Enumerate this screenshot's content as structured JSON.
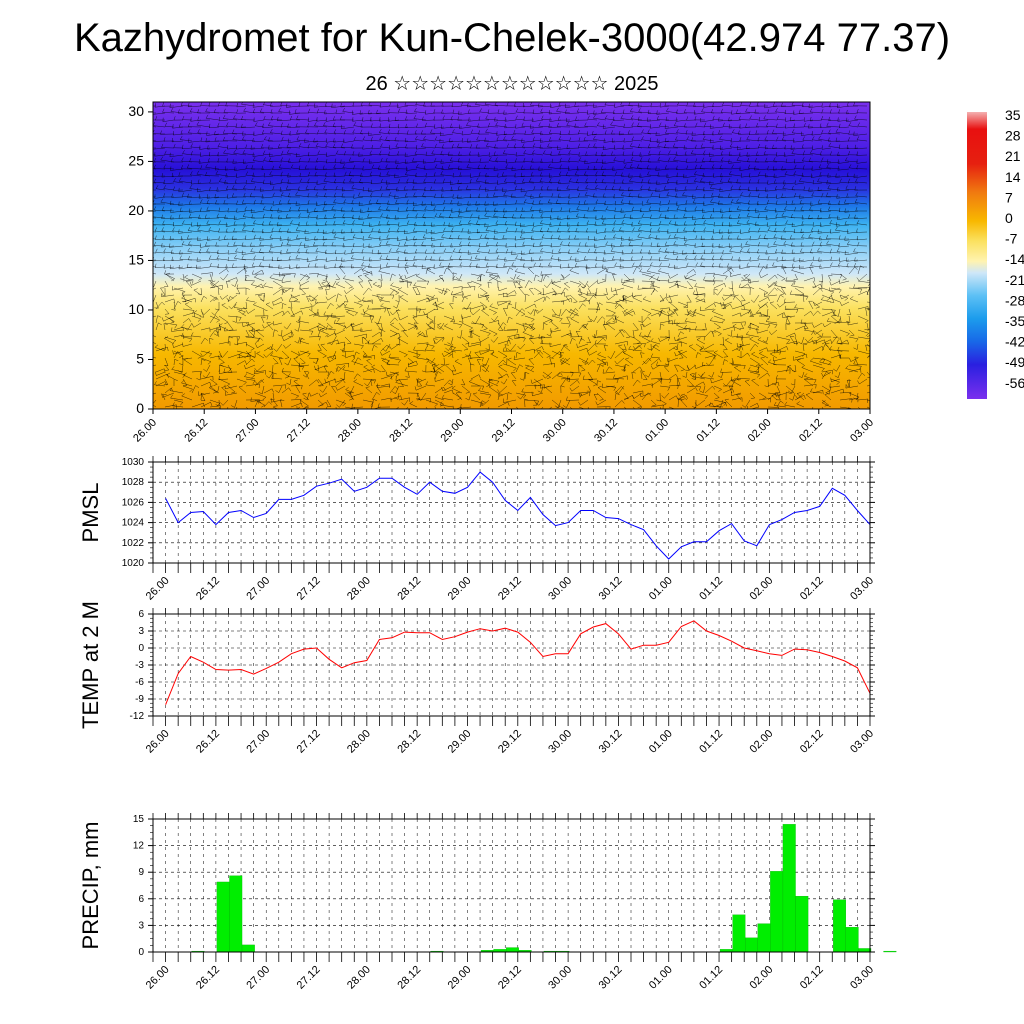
{
  "title": "Kazhydromet for Kun-Chelek-3000(42.974 77.37)",
  "subtitle": "26 ☆☆☆☆☆☆☆☆☆☆☆☆ 2025",
  "x_ticks": [
    "26.00",
    "26.12",
    "27.00",
    "27.12",
    "28.00",
    "28.12",
    "29.00",
    "29.12",
    "30.00",
    "30.12",
    "01.00",
    "01.12",
    "02.00",
    "02.12",
    "03.00"
  ],
  "colorbar": {
    "labels": [
      "35",
      "28",
      "21",
      "14",
      "7",
      "0",
      "-7",
      "-14",
      "-21",
      "-28",
      "-35",
      "-42",
      "-49",
      "-56"
    ]
  },
  "chart_data": [
    {
      "type": "heatmap",
      "panel": "cross-section",
      "x": [
        "26.00",
        "26.12",
        "27.00",
        "27.12",
        "28.00",
        "28.12",
        "29.00",
        "29.12",
        "30.00",
        "30.12",
        "01.00",
        "01.12",
        "02.00",
        "02.12",
        "03.00"
      ],
      "y_ticks": [
        0,
        5,
        10,
        15,
        20,
        25,
        30
      ],
      "ylim": [
        0,
        31
      ],
      "value_range": [
        -56,
        35
      ],
      "note_levels": {
        "warm_top": 12.5,
        "cold_band": [
          21,
          25
        ]
      }
    },
    {
      "type": "line",
      "ylabel": "PMSL",
      "ylim": [
        1020,
        1030
      ],
      "y_ticks": [
        1020,
        1022,
        1024,
        1026,
        1028,
        1030
      ],
      "color": "#0000ff",
      "values": [
        1026.4,
        1024.0,
        1025.0,
        1025.1,
        1023.8,
        1025.0,
        1025.2,
        1024.5,
        1024.9,
        1026.3,
        1026.3,
        1026.7,
        1027.6,
        1027.9,
        1028.3,
        1027.1,
        1027.5,
        1028.4,
        1028.4,
        1027.5,
        1026.8,
        1028.0,
        1027.1,
        1026.9,
        1027.5,
        1029.0,
        1028.0,
        1026.2,
        1025.2,
        1026.5,
        1024.8,
        1023.7,
        1024.0,
        1025.2,
        1025.2,
        1024.5,
        1024.4,
        1023.8,
        1023.3,
        1021.7,
        1020.4,
        1021.6,
        1022.1,
        1022.1,
        1023.2,
        1023.9,
        1022.2,
        1021.7,
        1023.8,
        1024.3,
        1025.0,
        1025.2,
        1025.6,
        1027.4,
        1026.7,
        1025.2,
        1023.8
      ]
    },
    {
      "type": "line",
      "ylabel": "TEMP at 2 M",
      "ylim": [
        -12,
        6
      ],
      "y_ticks": [
        -12,
        -9,
        -6,
        -3,
        0,
        3,
        6
      ],
      "color": "#ff0000",
      "values": [
        -10.0,
        -4.5,
        -1.5,
        -2.5,
        -3.8,
        -3.9,
        -3.8,
        -4.6,
        -3.6,
        -2.5,
        -1.0,
        -0.2,
        0.0,
        -2.0,
        -3.5,
        -2.6,
        -2.2,
        1.5,
        1.8,
        2.8,
        2.7,
        2.7,
        1.5,
        2.0,
        2.8,
        3.4,
        3.0,
        3.5,
        2.8,
        1.0,
        -1.5,
        -1.0,
        -1.0,
        2.5,
        3.7,
        4.3,
        2.5,
        -0.2,
        0.5,
        0.5,
        1.0,
        3.8,
        4.8,
        3.0,
        2.2,
        1.2,
        0.0,
        -0.5,
        -1.0,
        -1.3,
        -0.2,
        -0.3,
        -0.8,
        -1.5,
        -2.3,
        -3.5,
        -8.0
      ]
    },
    {
      "type": "bar",
      "ylabel": "PRECIP, mm",
      "ylim": [
        0,
        15
      ],
      "y_ticks": [
        0,
        3,
        6,
        9,
        12,
        15
      ],
      "color": "#00ee00",
      "values": [
        0,
        0,
        0,
        0.1,
        0,
        7.9,
        8.6,
        0.8,
        0,
        0,
        0,
        0,
        0,
        0,
        0,
        0,
        0,
        0,
        0,
        0,
        0,
        0,
        0.1,
        0,
        0,
        0,
        0.2,
        0.3,
        0.5,
        0.2,
        0,
        0.1,
        0.1,
        0,
        0,
        0,
        0,
        0,
        0,
        0,
        0,
        0,
        0,
        0,
        0,
        0.3,
        4.2,
        1.6,
        3.2,
        9.1,
        14.4,
        6.3,
        0,
        0,
        5.9,
        2.8,
        0.4,
        0,
        0.1
      ]
    }
  ]
}
